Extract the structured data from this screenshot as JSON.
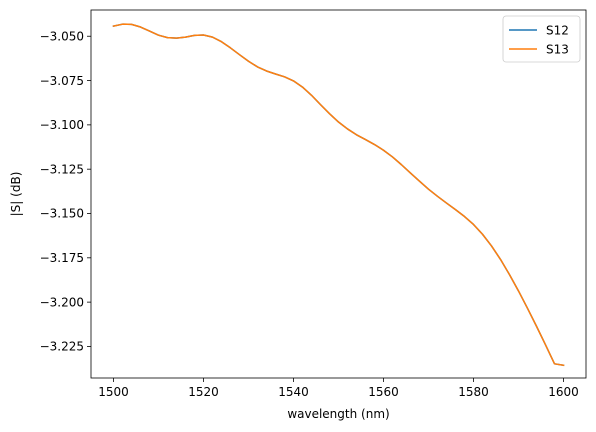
{
  "chart_data": {
    "type": "line",
    "title": "",
    "xlabel": "wavelength (nm)",
    "ylabel": "|S| (dB)",
    "xlim": [
      1495,
      1605
    ],
    "ylim": [
      -3.2428,
      -3.0352
    ],
    "xticks": [
      1500,
      1520,
      1540,
      1560,
      1580,
      1600
    ],
    "yticks": [
      -3.05,
      -3.075,
      -3.1,
      -3.125,
      -3.15,
      -3.175,
      -3.2,
      -3.225
    ],
    "ytick_labels": [
      "−3.050",
      "−3.075",
      "−3.100",
      "−3.125",
      "−3.150",
      "−3.175",
      "−3.200",
      "−3.225"
    ],
    "grid": false,
    "legend": "top-right",
    "x": [
      1500,
      1502,
      1504,
      1506,
      1508,
      1510,
      1512,
      1514,
      1516,
      1518,
      1520,
      1522,
      1524,
      1526,
      1528,
      1530,
      1532,
      1534,
      1536,
      1538,
      1540,
      1542,
      1544,
      1546,
      1548,
      1550,
      1552,
      1554,
      1556,
      1558,
      1560,
      1562,
      1564,
      1566,
      1568,
      1570,
      1572,
      1574,
      1576,
      1578,
      1580,
      1582,
      1584,
      1586,
      1588,
      1590,
      1592,
      1594,
      1596,
      1598,
      1600
    ],
    "series": [
      {
        "name": "S12",
        "color": "#1f77b4",
        "values": [
          -3.0443,
          -3.0432,
          -3.0433,
          -3.0448,
          -3.0471,
          -3.0494,
          -3.0508,
          -3.0511,
          -3.0505,
          -3.0495,
          -3.0493,
          -3.0505,
          -3.0531,
          -3.0566,
          -3.0604,
          -3.0641,
          -3.0673,
          -3.0696,
          -3.0713,
          -3.0729,
          -3.0752,
          -3.0787,
          -3.0833,
          -3.0886,
          -3.0937,
          -3.0984,
          -3.1023,
          -3.1056,
          -3.1083,
          -3.1111,
          -3.1143,
          -3.1181,
          -3.1225,
          -3.1272,
          -3.1318,
          -3.1363,
          -3.1403,
          -3.1441,
          -3.1478,
          -3.1517,
          -3.1562,
          -3.1617,
          -3.1683,
          -3.1759,
          -3.1845,
          -3.1937,
          -3.2035,
          -3.2136,
          -3.2241,
          -3.2348,
          -3.2356
        ]
      },
      {
        "name": "S13",
        "color": "#ff7f0e",
        "values": [
          -3.0443,
          -3.0432,
          -3.0433,
          -3.0448,
          -3.0471,
          -3.0494,
          -3.0508,
          -3.0511,
          -3.0505,
          -3.0495,
          -3.0493,
          -3.0505,
          -3.0531,
          -3.0566,
          -3.0604,
          -3.0641,
          -3.0673,
          -3.0696,
          -3.0713,
          -3.0729,
          -3.0752,
          -3.0787,
          -3.0833,
          -3.0886,
          -3.0937,
          -3.0984,
          -3.1023,
          -3.1056,
          -3.1083,
          -3.1111,
          -3.1143,
          -3.1181,
          -3.1225,
          -3.1272,
          -3.1318,
          -3.1363,
          -3.1403,
          -3.1441,
          -3.1478,
          -3.1517,
          -3.1562,
          -3.1617,
          -3.1683,
          -3.1759,
          -3.1845,
          -3.1937,
          -3.2035,
          -3.2136,
          -3.2241,
          -3.2348,
          -3.2356
        ]
      }
    ]
  }
}
